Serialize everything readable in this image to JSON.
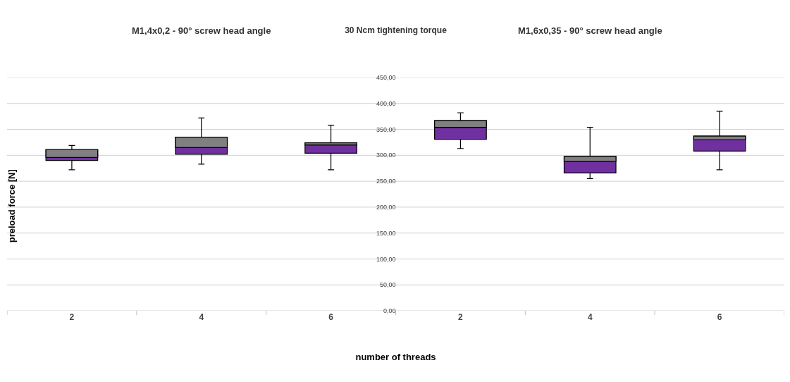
{
  "chart_data": {
    "type": "box",
    "title": "30 Ncm tightening torque",
    "annotations": [
      "M1,4x0,2 - 90° screw head angle",
      "M1,6x0,35 - 90° screw head angle"
    ],
    "xlabel": "number of threads",
    "ylabel": "preload force [N]",
    "categories": [
      "2",
      "4",
      "6",
      "2",
      "4",
      "6"
    ],
    "colors": [
      "#808080",
      "#808080",
      "#808080",
      "#808080",
      "#808080",
      "#808080"
    ],
    "series": [
      {
        "color": "#7030a0",
        "boxes": [
          {
            "low": 272,
            "q1": 290,
            "median": 296,
            "q3": 311,
            "high": 319
          },
          {
            "low": 283,
            "q1": 302,
            "median": 315,
            "q3": 335,
            "high": 372
          },
          {
            "low": 272,
            "q1": 304,
            "median": 320,
            "q3": 324,
            "high": 358
          },
          {
            "low": 313,
            "q1": 331,
            "median": 354,
            "q3": 367,
            "high": 382
          },
          {
            "low": 255,
            "q1": 266,
            "median": 288,
            "q3": 298,
            "high": 354
          },
          {
            "low": 272,
            "q1": 308,
            "median": 330,
            "q3": 337,
            "high": 385
          }
        ]
      }
    ],
    "ylim": [
      0,
      450
    ],
    "yticks": [
      {
        "value": 0,
        "label": "0,00"
      },
      {
        "value": 50,
        "label": "50,00"
      },
      {
        "value": 100,
        "label": "100,00"
      },
      {
        "value": 150,
        "label": "150,00"
      },
      {
        "value": 200,
        "label": "200,00"
      },
      {
        "value": 250,
        "label": "250,00"
      },
      {
        "value": 300,
        "label": "300,00"
      },
      {
        "value": 350,
        "label": "350,00"
      },
      {
        "value": 400,
        "label": "400,00"
      },
      {
        "value": 450,
        "label": "450,00"
      }
    ],
    "grid": "y"
  }
}
